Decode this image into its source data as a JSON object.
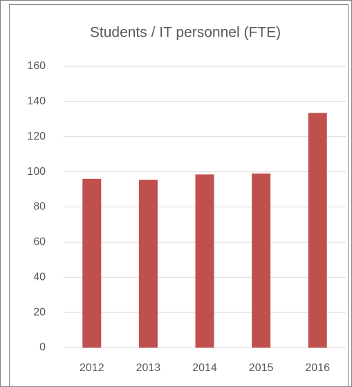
{
  "chart_data": {
    "type": "bar",
    "title": "Students / IT personnel (FTE)",
    "categories": [
      "2012",
      "2013",
      "2014",
      "2015",
      "2016"
    ],
    "values": [
      96,
      95.5,
      98.5,
      99,
      133.5
    ],
    "color": "#c0504d",
    "ylim": [
      0,
      160
    ],
    "yticks": [
      0,
      20,
      40,
      60,
      80,
      100,
      120,
      140,
      160
    ],
    "grid": true
  }
}
